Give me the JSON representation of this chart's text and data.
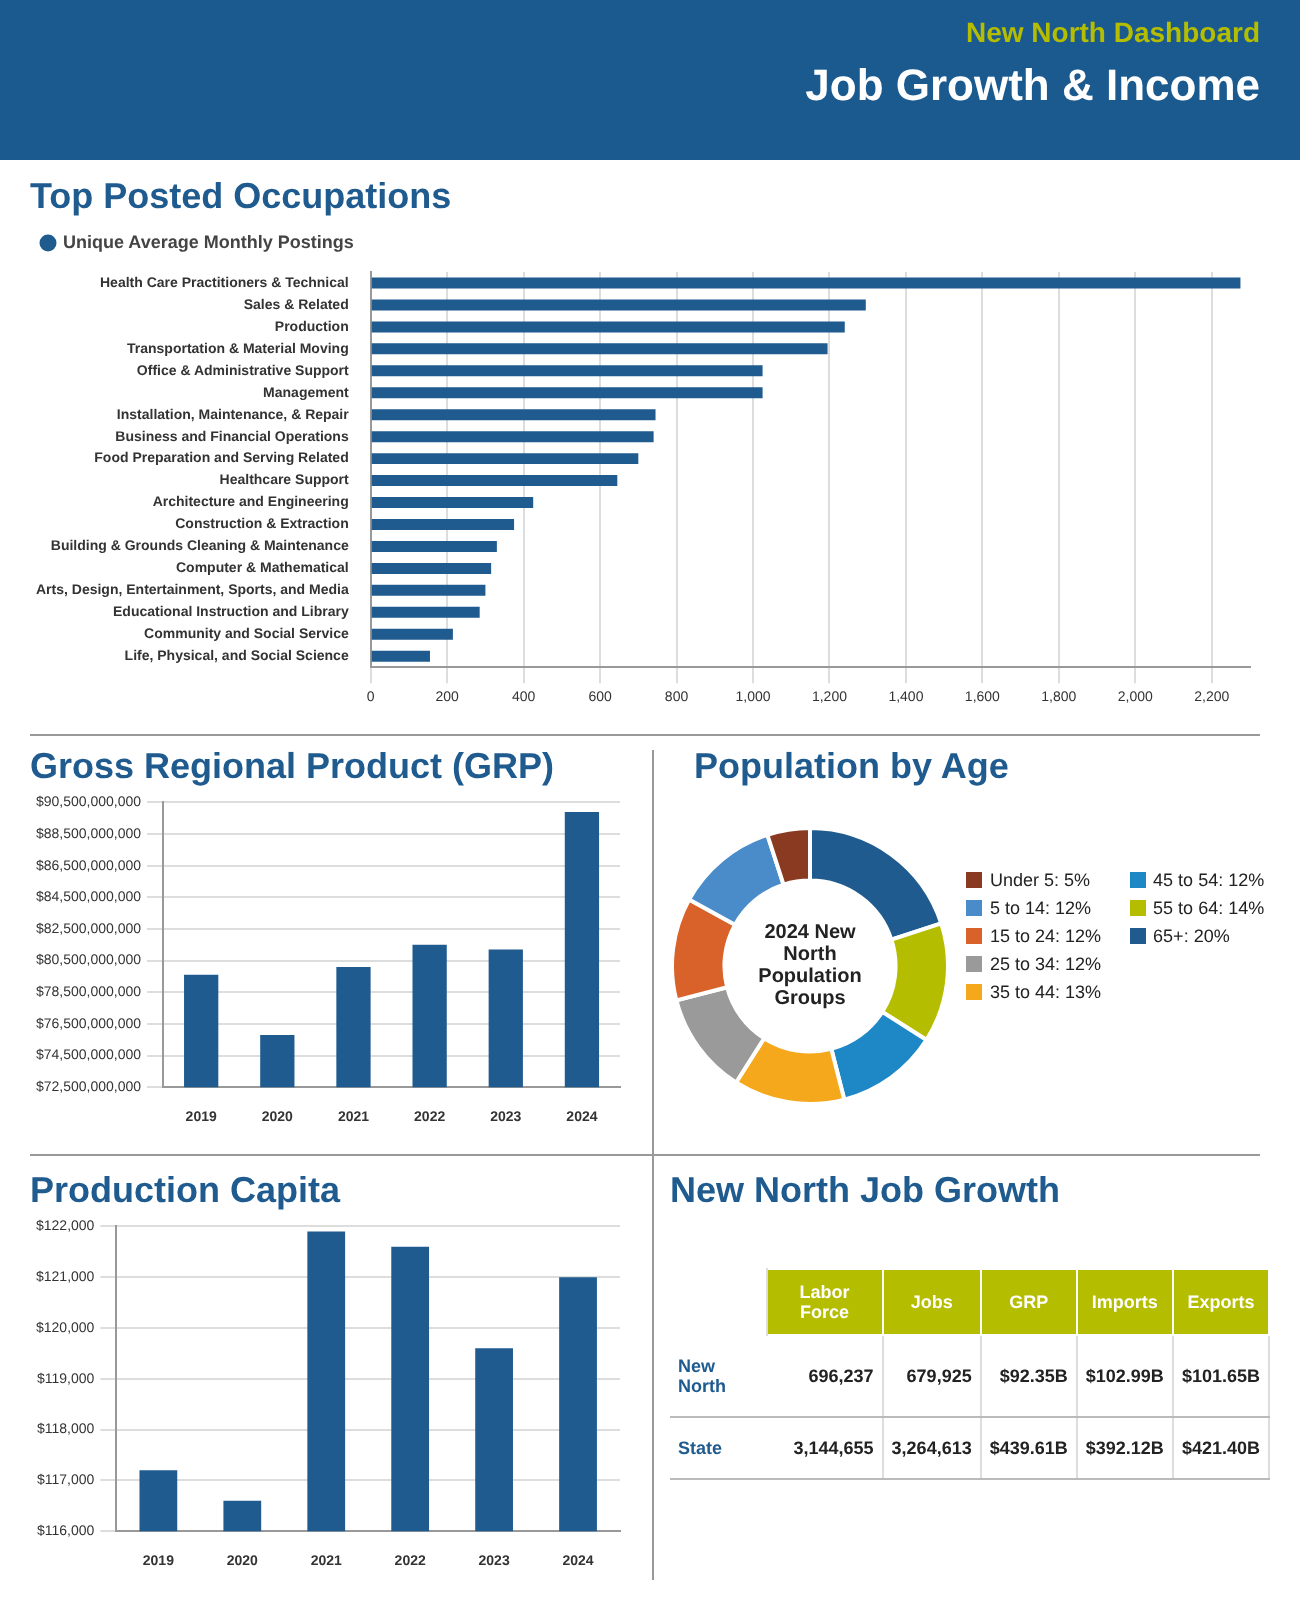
{
  "chart_data": [
    {
      "type": "bar",
      "title": "Top Posted Occupations",
      "orientation": "horizontal",
      "annotations": [
        "New North Dashboard",
        "Job Growth & Income"
      ],
      "categories": [
        "Health Care Practitioners & Technical",
        "Sales & Related",
        "Production",
        "Transportation & Material Moving",
        "Office & Administrative Support",
        "Management",
        "Installation, Maintenance, & Repair",
        "Business and Financial Operations",
        "Food Preparation and Serving Related",
        "Healthcare Support",
        "Architecture and Engineering",
        "Construction & Extraction",
        "Building & Grounds Cleaning & Maintenance",
        "Computer & Mathematical",
        "Arts, Design, Entertainment, Sports, and Media",
        "Educational Instruction and Library",
        "Community and Social Service",
        "Life, Physical, and Social Science"
      ],
      "series": [
        {
          "name": "Unique Average Monthly Postings",
          "color": "#1f5b8f",
          "values": [
            2275,
            1295,
            1240,
            1195,
            1025,
            1025,
            745,
            740,
            700,
            645,
            425,
            375,
            330,
            315,
            300,
            285,
            215,
            155
          ]
        }
      ],
      "xlim": [
        0,
        2300
      ],
      "xticks": [
        0,
        200,
        400,
        600,
        800,
        {
          "value": 1000,
          "label": "1,000"
        },
        {
          "value": 1200,
          "label": "1,200"
        },
        {
          "value": 1400,
          "label": "1,400"
        },
        {
          "value": 1600,
          "label": "1,600"
        },
        {
          "value": 1800,
          "label": "1,800"
        },
        {
          "value": 2000,
          "label": "2,000"
        },
        {
          "value": 2200,
          "label": "2,200"
        }
      ],
      "grid": "x",
      "legend": "top left",
      "marker": "circle"
    },
    {
      "type": "bar",
      "title": "Gross Regional Product (GRP)",
      "categories": [
        "2019",
        "2020",
        "2021",
        "2022",
        "2023",
        "2024"
      ],
      "series": [
        {
          "color": "#1f5b8f",
          "values": [
            79600000000,
            75800000000,
            80100000000,
            81500000000,
            81200000000,
            89900000000
          ]
        }
      ],
      "ylim": [
        72500000000,
        90500000000
      ],
      "yticks": [
        {
          "value": 72500000000,
          "label": "$72,500,000,000"
        },
        {
          "value": 74500000000,
          "label": "$74,500,000,000"
        },
        {
          "value": 76500000000,
          "label": "$76,500,000,000"
        },
        {
          "value": 78500000000,
          "label": "$78,500,000,000"
        },
        {
          "value": 80500000000,
          "label": "$80,500,000,000"
        },
        {
          "value": 82500000000,
          "label": "$82,500,000,000"
        },
        {
          "value": 84500000000,
          "label": "$84,500,000,000"
        },
        {
          "value": 86500000000,
          "label": "$86,500,000,000"
        },
        {
          "value": 88500000000,
          "label": "$88,500,000,000"
        },
        {
          "value": 90500000000,
          "label": "$90,500,000,000"
        }
      ],
      "grid": "y"
    },
    {
      "type": "donut",
      "title": "Population by Age",
      "annotations": [
        "2024 New North Population Groups"
      ],
      "categories": [
        "Under 5",
        "5 to 14",
        "15 to 24",
        "25 to 34",
        "35 to 44",
        "45 to 54",
        "55 to 64",
        "65+"
      ],
      "values": [
        5,
        12,
        12,
        12,
        13,
        12,
        14,
        20
      ],
      "value_labels": [
        "5%",
        "12%",
        "12%",
        "12%",
        "13%",
        "12%",
        "14%",
        "20%"
      ],
      "colors": [
        "#8b3a22",
        "#4a8cca",
        "#d9622b",
        "#9a9a9a",
        "#f5a81c",
        "#1e88c7",
        "#b5bd00",
        "#1f5b8f"
      ],
      "legend": "right"
    },
    {
      "type": "bar",
      "title": "Production Capita",
      "categories": [
        "2019",
        "2020",
        "2021",
        "2022",
        "2023",
        "2024"
      ],
      "series": [
        {
          "color": "#1f5b8f",
          "values": [
            117200,
            116600,
            121900,
            121600,
            119600,
            121000
          ]
        }
      ],
      "ylim": [
        116000,
        122000
      ],
      "yticks": [
        {
          "value": 116000,
          "label": "$116,000"
        },
        {
          "value": 117000,
          "label": "$117,000"
        },
        {
          "value": 118000,
          "label": "$118,000"
        },
        {
          "value": 119000,
          "label": "$119,000"
        },
        {
          "value": 120000,
          "label": "$120,000"
        },
        {
          "value": 121000,
          "label": "$121,000"
        },
        {
          "value": 122000,
          "label": "$122,000"
        }
      ],
      "grid": "y"
    },
    {
      "type": "other",
      "title": "New North Job Growth",
      "categories": [
        "Labor Force",
        "Jobs",
        "GRP",
        "Imports",
        "Exports"
      ],
      "y_categories": [
        "New North",
        "State"
      ],
      "cell_labels": [
        [
          "696,237",
          "679,925",
          "$92.35B",
          "$102.99B",
          "$101.65B"
        ],
        [
          "3,144,655",
          "3,264,613",
          "$439.61B",
          "$392.12B",
          "$421.40B"
        ]
      ]
    }
  ]
}
